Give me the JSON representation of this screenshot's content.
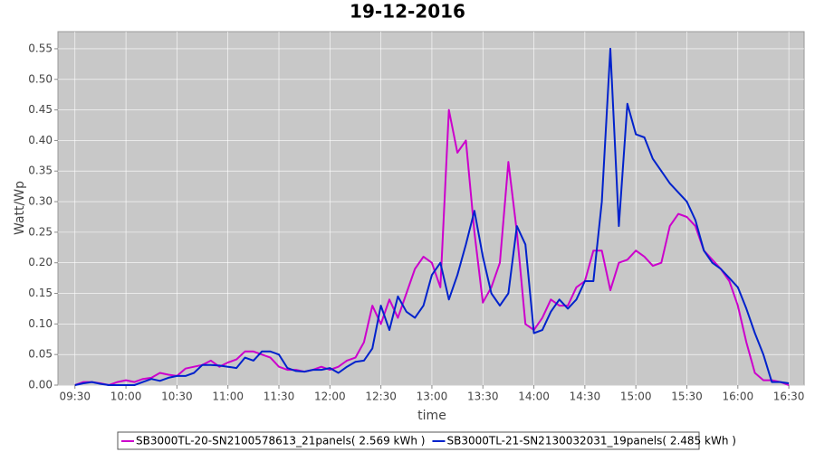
{
  "chart_data": {
    "type": "line",
    "title": "19-12-2016",
    "x_label": "time",
    "y_label": "Watt/Wp",
    "x": [
      "09:30",
      "09:35",
      "09:40",
      "09:45",
      "09:50",
      "09:55",
      "10:00",
      "10:05",
      "10:10",
      "10:15",
      "10:20",
      "10:25",
      "10:30",
      "10:35",
      "10:40",
      "10:45",
      "10:50",
      "10:55",
      "11:00",
      "11:05",
      "11:10",
      "11:15",
      "11:20",
      "11:25",
      "11:30",
      "11:35",
      "11:40",
      "11:45",
      "11:50",
      "11:55",
      "12:00",
      "12:05",
      "12:10",
      "12:15",
      "12:20",
      "12:25",
      "12:30",
      "12:35",
      "12:40",
      "12:45",
      "12:50",
      "12:55",
      "13:00",
      "13:05",
      "13:10",
      "13:15",
      "13:20",
      "13:25",
      "13:30",
      "13:35",
      "13:40",
      "13:45",
      "13:50",
      "13:55",
      "14:00",
      "14:05",
      "14:10",
      "14:15",
      "14:20",
      "14:25",
      "14:30",
      "14:35",
      "14:40",
      "14:45",
      "14:50",
      "14:55",
      "15:00",
      "15:05",
      "15:10",
      "15:15",
      "15:20",
      "15:25",
      "15:30",
      "15:35",
      "15:40",
      "15:45",
      "15:50",
      "15:55",
      "16:00",
      "16:05",
      "16:10",
      "16:15",
      "16:20",
      "16:25",
      "16:30"
    ],
    "series": [
      {
        "name": "SB3000TL-20-SN2100578613_21panels( 2.569 kWh )",
        "color": "#cc00cc",
        "values": [
          0.0,
          0.005,
          0.005,
          0.003,
          0.0,
          0.005,
          0.008,
          0.005,
          0.01,
          0.012,
          0.02,
          0.017,
          0.015,
          0.027,
          0.03,
          0.033,
          0.04,
          0.03,
          0.037,
          0.042,
          0.055,
          0.055,
          0.05,
          0.045,
          0.03,
          0.025,
          0.025,
          0.022,
          0.025,
          0.03,
          0.025,
          0.03,
          0.04,
          0.045,
          0.07,
          0.13,
          0.1,
          0.14,
          0.11,
          0.15,
          0.19,
          0.21,
          0.2,
          0.16,
          0.45,
          0.38,
          0.4,
          0.25,
          0.135,
          0.16,
          0.2,
          0.365,
          0.25,
          0.1,
          0.09,
          0.11,
          0.14,
          0.13,
          0.13,
          0.16,
          0.17,
          0.22,
          0.22,
          0.155,
          0.2,
          0.205,
          0.22,
          0.21,
          0.195,
          0.2,
          0.26,
          0.28,
          0.275,
          0.26,
          0.22,
          0.205,
          0.19,
          0.17,
          0.13,
          0.07,
          0.02,
          0.008,
          0.008,
          0.005,
          0.0
        ]
      },
      {
        "name": "SB3000TL-21-SN2130032031_19panels( 2.485 kWh )",
        "color": "#0022cc",
        "values": [
          0.0,
          0.003,
          0.005,
          0.002,
          0.0,
          0.0,
          0.0,
          0.0,
          0.005,
          0.01,
          0.007,
          0.012,
          0.015,
          0.015,
          0.02,
          0.033,
          0.033,
          0.032,
          0.03,
          0.028,
          0.045,
          0.04,
          0.055,
          0.055,
          0.05,
          0.028,
          0.023,
          0.022,
          0.025,
          0.025,
          0.028,
          0.02,
          0.03,
          0.038,
          0.04,
          0.06,
          0.13,
          0.09,
          0.145,
          0.12,
          0.11,
          0.13,
          0.18,
          0.2,
          0.14,
          0.18,
          0.23,
          0.285,
          0.21,
          0.15,
          0.13,
          0.15,
          0.26,
          0.23,
          0.085,
          0.09,
          0.12,
          0.14,
          0.125,
          0.14,
          0.17,
          0.17,
          0.3,
          0.55,
          0.26,
          0.46,
          0.41,
          0.405,
          0.37,
          0.35,
          0.33,
          0.315,
          0.3,
          0.27,
          0.22,
          0.2,
          0.19,
          0.175,
          0.16,
          0.125,
          0.085,
          0.05,
          0.005,
          0.005,
          0.003
        ]
      }
    ],
    "xlim": [
      "09:20",
      "16:39"
    ],
    "xticks": [
      "09:30",
      "10:00",
      "10:30",
      "11:00",
      "11:30",
      "12:00",
      "12:30",
      "13:00",
      "13:30",
      "14:00",
      "14:30",
      "15:00",
      "15:30",
      "16:00",
      "16:30"
    ],
    "ylim": [
      0,
      0.578
    ],
    "yticks": [
      {
        "value": 0,
        "label": "0.00"
      },
      0.05,
      {
        "value": 0.1,
        "label": "0.10"
      },
      0.15,
      {
        "value": 0.2,
        "label": "0.20"
      },
      0.25,
      {
        "value": 0.3,
        "label": "0.30"
      },
      0.35,
      {
        "value": 0.4,
        "label": "0.40"
      },
      0.45,
      {
        "value": 0.5,
        "label": "0.50"
      },
      0.55
    ],
    "grid": true
  }
}
